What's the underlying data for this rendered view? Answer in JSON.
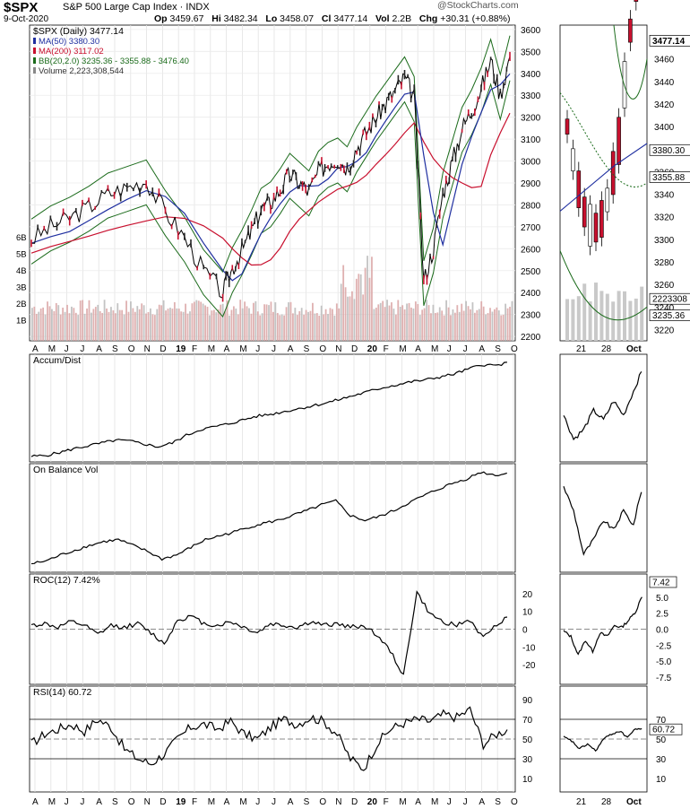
{
  "header": {
    "symbol": "$SPX",
    "name": "S&P 500 Large Cap Index",
    "exchange": "INDX",
    "date": "9-Oct-2020",
    "open_label": "Op",
    "open": "3459.67",
    "high_label": "Hi",
    "high": "3482.34",
    "low_label": "Lo",
    "low": "3458.07",
    "close_label": "Cl",
    "close": "3477.14",
    "volume_label": "Vol",
    "volume": "2.2B",
    "change_label": "Chg",
    "change": "+30.31 (+0.88%)",
    "source": "@StockCharts.com"
  },
  "colors": {
    "price": "#000000",
    "ma50": "#1f2fa0",
    "ma200": "#c8102e",
    "bb": "#1b6b1b",
    "up_candle": "#ffffff",
    "down_candle": "#c8102e",
    "volume": "#d9a3a3"
  },
  "chart_data": [
    {
      "type": "line",
      "panel": "price",
      "title": "$SPX (Daily) 3477.14",
      "legend": [
        {
          "label": "MA(50) 3380.30",
          "color": "#1f2fa0"
        },
        {
          "label": "MA(200) 3117.02",
          "color": "#c8102e"
        },
        {
          "label": "BB(20,2.0) 3235.36 - 3355.88 - 3476.40",
          "color": "#1b6b1b"
        },
        {
          "label": "Volume 2,223,308,544",
          "color": "#888888"
        }
      ],
      "x_months": [
        "A",
        "M",
        "J",
        "J",
        "A",
        "S",
        "O",
        "N",
        "D",
        "19",
        "F",
        "M",
        "A",
        "M",
        "J",
        "J",
        "A",
        "S",
        "O",
        "N",
        "D",
        "20",
        "F",
        "M",
        "A",
        "M",
        "J",
        "J",
        "A",
        "S",
        "O"
      ],
      "ylim": [
        2180,
        3620
      ],
      "y_ticks": [
        3600,
        3500,
        3400,
        3300,
        3200,
        3100,
        3000,
        2900,
        2800,
        2700,
        2600,
        2500,
        2400,
        2300,
        2200
      ],
      "volume_ticks": [
        "6B",
        "5B",
        "4B",
        "3B",
        "2B",
        "1B"
      ],
      "series": [
        {
          "name": "$SPX",
          "x": [
            0,
            4,
            8,
            12,
            16,
            20,
            24,
            28,
            32,
            36,
            40,
            42,
            44,
            46,
            48,
            50,
            52,
            54,
            56,
            58,
            60,
            62,
            64,
            66,
            68,
            70,
            72,
            74,
            76,
            78,
            80,
            82,
            84,
            86,
            88,
            90,
            92,
            94,
            96,
            98,
            100
          ],
          "values": [
            2640,
            2700,
            2740,
            2790,
            2850,
            2880,
            2910,
            2770,
            2650,
            2500,
            2400,
            2510,
            2590,
            2680,
            2780,
            2810,
            2870,
            2940,
            2900,
            2860,
            2950,
            2990,
            3010,
            2970,
            3060,
            3130,
            3200,
            3260,
            3320,
            3380,
            3290,
            2450,
            2600,
            2850,
            3000,
            3150,
            3230,
            3330,
            3460,
            3300,
            3477
          ]
        }
      ]
    },
    {
      "type": "line",
      "panel": "zoom-price",
      "x_labels": [
        "21",
        "28",
        "Oct"
      ],
      "ylim": [
        3210,
        3490
      ],
      "y_ticks": [
        3460,
        3440,
        3420,
        3400,
        3380,
        3360,
        3340,
        3320,
        3300,
        3280,
        3260,
        3240,
        3220
      ],
      "last_price": "3477.14",
      "ma50_label": "3380.30",
      "bb_mid_label": "3355.88",
      "volume_label": "2223308",
      "bb_low_label": "3235.36"
    },
    {
      "type": "line",
      "panel": "accum-dist",
      "title": "Accum/Dist",
      "values": [
        0.02,
        0.03,
        0.06,
        0.1,
        0.13,
        0.16,
        0.19,
        0.18,
        0.15,
        0.12,
        0.16,
        0.24,
        0.3,
        0.33,
        0.36,
        0.4,
        0.44,
        0.46,
        0.49,
        0.52,
        0.55,
        0.58,
        0.62,
        0.66,
        0.7,
        0.74,
        0.77,
        0.8,
        0.82,
        0.85,
        0.88,
        0.93,
        0.98,
        0.97,
        1.0
      ]
    },
    {
      "type": "line",
      "panel": "obv",
      "title": "On Balance Vol",
      "values": [
        0.05,
        0.08,
        0.14,
        0.19,
        0.24,
        0.28,
        0.3,
        0.24,
        0.18,
        0.1,
        0.14,
        0.22,
        0.3,
        0.34,
        0.38,
        0.43,
        0.47,
        0.5,
        0.55,
        0.6,
        0.66,
        0.7,
        0.55,
        0.5,
        0.54,
        0.6,
        0.68,
        0.75,
        0.82,
        0.88,
        0.93,
        1.0,
        0.97,
        0.99
      ]
    },
    {
      "type": "line",
      "panel": "roc",
      "title": "ROC(12) 7.42%",
      "y_ticks": [
        "20",
        "10",
        "0",
        "-10",
        "-20"
      ],
      "zoom_ticks": [
        "7.42",
        "5.0",
        "2.5",
        "0.0",
        "-2.5",
        "-5.0",
        "-7.5"
      ],
      "values": [
        2,
        3,
        1,
        4,
        2,
        -3,
        2,
        1,
        3,
        -2,
        -8,
        5,
        7,
        3,
        2,
        4,
        1,
        -2,
        3,
        2,
        1,
        4,
        2,
        3,
        1,
        2,
        -3,
        -12,
        -25,
        20,
        8,
        4,
        2,
        5,
        -5,
        3,
        7
      ]
    },
    {
      "type": "line",
      "panel": "rsi",
      "title": "RSI(14) 60.72",
      "y_ticks": [
        "90",
        "70",
        "50",
        "30",
        "10"
      ],
      "zoom_ticks": [
        "70",
        "60.72",
        "50",
        "30",
        "10"
      ],
      "values": [
        45,
        55,
        60,
        65,
        58,
        70,
        62,
        40,
        30,
        25,
        35,
        50,
        62,
        65,
        60,
        68,
        55,
        50,
        62,
        70,
        65,
        72,
        68,
        55,
        30,
        20,
        45,
        60,
        66,
        70,
        68,
        75,
        72,
        80,
        45,
        55,
        61
      ]
    }
  ]
}
